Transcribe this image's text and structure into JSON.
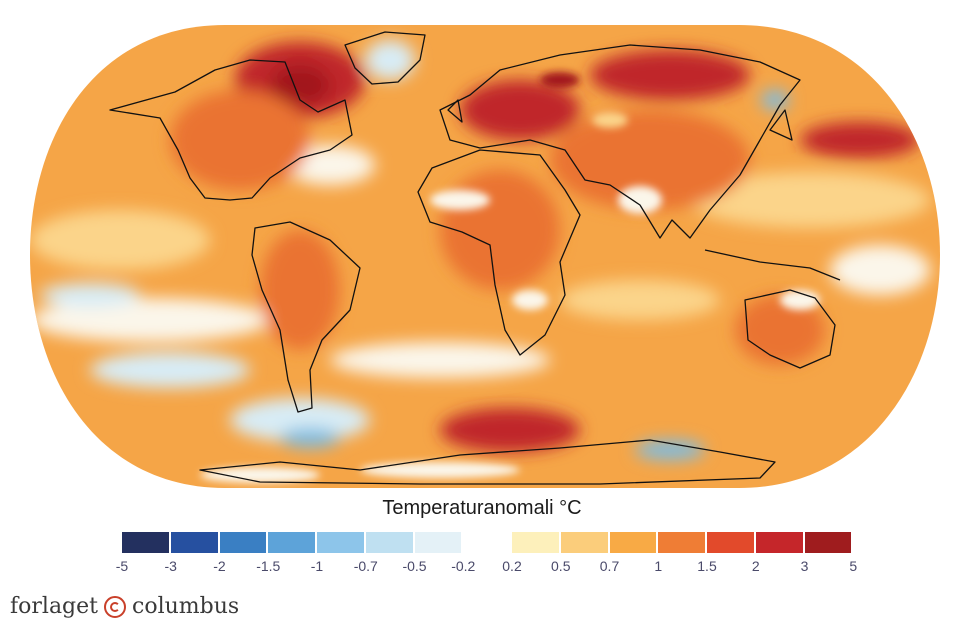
{
  "map": {
    "projection": "robinson",
    "colors": {
      "ocean_base": "#f5a547",
      "land_base": "#ea7331",
      "hot": "#c0262a",
      "very_hot": "#a2191d",
      "warm_light": "#fbd48a",
      "neutral": "#fbf6ea",
      "cool_light": "#d8ecf5",
      "cool": "#7fbce0",
      "cold": "#3b86c6",
      "coastline": "#111111"
    }
  },
  "legend": {
    "title": "Temperaturanomali °C",
    "colors": [
      "#23305f",
      "#2650a0",
      "#3a7fc3",
      "#5da3d9",
      "#8dc5ea",
      "#bfe0f1",
      "#e4f1f7",
      "#ffffff",
      "#fdf0bb",
      "#fbcd7b",
      "#f8aa45",
      "#ef7d35",
      "#e24a2b",
      "#c5262a",
      "#9f1c1e"
    ],
    "ticks": [
      "-5",
      "-3",
      "-2",
      "-1.5",
      "-1",
      "-0.7",
      "-0.5",
      "-0.2",
      "0.2",
      "0.5",
      "0.7",
      "1",
      "1.5",
      "2",
      "3",
      "5"
    ]
  },
  "publisher": {
    "left": "forlaget",
    "right": "columbus",
    "logo": "copyright-circle-icon"
  }
}
